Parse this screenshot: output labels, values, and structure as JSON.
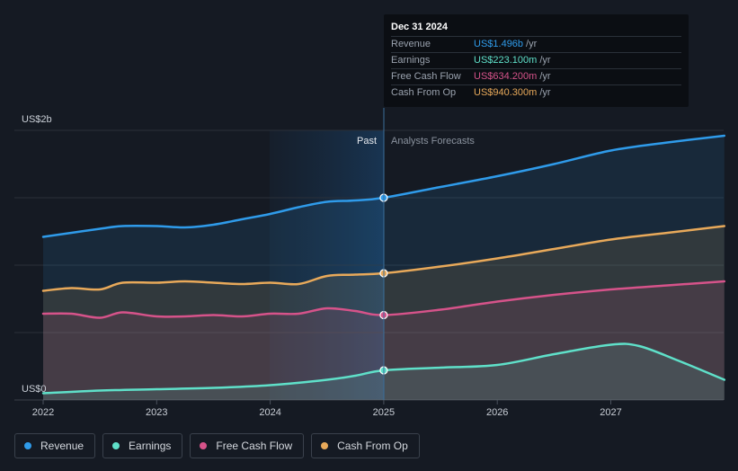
{
  "tooltip": {
    "date": "Dec 31 2024",
    "rows": [
      {
        "label": "Revenue",
        "value": "US$1.496b",
        "unit": "/yr",
        "color": "#2f9bea"
      },
      {
        "label": "Earnings",
        "value": "US$223.100m",
        "unit": "/yr",
        "color": "#5fe0c9"
      },
      {
        "label": "Free Cash Flow",
        "value": "US$634.200m",
        "unit": "/yr",
        "color": "#d6538a"
      },
      {
        "label": "Cash From Op",
        "value": "US$940.300m",
        "unit": "/yr",
        "color": "#e8a95a"
      }
    ]
  },
  "legend": [
    {
      "label": "Revenue",
      "color": "#2f9bea"
    },
    {
      "label": "Earnings",
      "color": "#5fe0c9"
    },
    {
      "label": "Free Cash Flow",
      "color": "#d6538a"
    },
    {
      "label": "Cash From Op",
      "color": "#e8a95a"
    }
  ],
  "chart_data": {
    "type": "line",
    "y_top_label": "US$2b",
    "y_bottom_label": "US$0",
    "ylim": [
      0,
      2.0
    ],
    "xlim": [
      2022.0,
      2028.0
    ],
    "x_ticks": [
      "2022",
      "2023",
      "2024",
      "2025",
      "2026",
      "2027"
    ],
    "past_label": "Past",
    "forecast_label": "Analysts Forecasts",
    "divider_x": 2025.0,
    "grid": true,
    "series": [
      {
        "name": "Revenue",
        "color": "#2f9bea",
        "points": [
          [
            2022.0,
            1.21
          ],
          [
            2022.25,
            1.24
          ],
          [
            2022.5,
            1.27
          ],
          [
            2022.7,
            1.29
          ],
          [
            2023.0,
            1.29
          ],
          [
            2023.25,
            1.28
          ],
          [
            2023.5,
            1.3
          ],
          [
            2023.75,
            1.34
          ],
          [
            2024.0,
            1.38
          ],
          [
            2024.25,
            1.43
          ],
          [
            2024.5,
            1.47
          ],
          [
            2024.75,
            1.48
          ],
          [
            2025.0,
            1.5
          ],
          [
            2025.5,
            1.58
          ],
          [
            2026.0,
            1.66
          ],
          [
            2026.5,
            1.75
          ],
          [
            2027.0,
            1.85
          ],
          [
            2027.5,
            1.91
          ],
          [
            2028.0,
            1.96
          ]
        ],
        "marker_x": 2025.0
      },
      {
        "name": "Cash From Op",
        "color": "#e8a95a",
        "points": [
          [
            2022.0,
            0.81
          ],
          [
            2022.25,
            0.83
          ],
          [
            2022.5,
            0.82
          ],
          [
            2022.7,
            0.87
          ],
          [
            2023.0,
            0.87
          ],
          [
            2023.25,
            0.88
          ],
          [
            2023.5,
            0.87
          ],
          [
            2023.75,
            0.86
          ],
          [
            2024.0,
            0.87
          ],
          [
            2024.25,
            0.86
          ],
          [
            2024.5,
            0.92
          ],
          [
            2024.75,
            0.93
          ],
          [
            2025.0,
            0.94
          ],
          [
            2025.5,
            0.99
          ],
          [
            2026.0,
            1.05
          ],
          [
            2026.5,
            1.12
          ],
          [
            2027.0,
            1.19
          ],
          [
            2027.5,
            1.24
          ],
          [
            2028.0,
            1.29
          ]
        ],
        "marker_x": 2025.0
      },
      {
        "name": "Free Cash Flow",
        "color": "#d6538a",
        "points": [
          [
            2022.0,
            0.64
          ],
          [
            2022.25,
            0.64
          ],
          [
            2022.5,
            0.61
          ],
          [
            2022.7,
            0.65
          ],
          [
            2023.0,
            0.62
          ],
          [
            2023.25,
            0.62
          ],
          [
            2023.5,
            0.63
          ],
          [
            2023.75,
            0.62
          ],
          [
            2024.0,
            0.64
          ],
          [
            2024.25,
            0.64
          ],
          [
            2024.5,
            0.68
          ],
          [
            2024.75,
            0.66
          ],
          [
            2025.0,
            0.63
          ],
          [
            2025.5,
            0.67
          ],
          [
            2026.0,
            0.73
          ],
          [
            2026.5,
            0.78
          ],
          [
            2027.0,
            0.82
          ],
          [
            2027.5,
            0.85
          ],
          [
            2028.0,
            0.88
          ]
        ],
        "marker_x": 2025.0
      },
      {
        "name": "Earnings",
        "color": "#5fe0c9",
        "points": [
          [
            2022.0,
            0.05
          ],
          [
            2022.5,
            0.07
          ],
          [
            2023.0,
            0.08
          ],
          [
            2023.5,
            0.09
          ],
          [
            2024.0,
            0.11
          ],
          [
            2024.5,
            0.15
          ],
          [
            2024.75,
            0.18
          ],
          [
            2025.0,
            0.22
          ],
          [
            2025.5,
            0.24
          ],
          [
            2026.0,
            0.26
          ],
          [
            2026.5,
            0.34
          ],
          [
            2027.0,
            0.41
          ],
          [
            2027.25,
            0.4
          ],
          [
            2027.6,
            0.29
          ],
          [
            2028.0,
            0.15
          ]
        ],
        "marker_x": 2025.0
      }
    ]
  }
}
